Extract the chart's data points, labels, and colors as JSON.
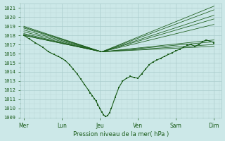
{
  "xlabel": "Pression niveau de la mer( hPa )",
  "ylim": [
    1009,
    1021.5
  ],
  "yticks": [
    1009,
    1010,
    1011,
    1012,
    1013,
    1014,
    1015,
    1016,
    1017,
    1018,
    1019,
    1020,
    1021
  ],
  "xtick_labels": [
    "Mer",
    "Lun",
    "Jeu",
    "Ven",
    "Sam",
    "Dim"
  ],
  "xtick_positions": [
    0,
    1,
    2,
    3,
    4,
    5
  ],
  "bg_color": "#cce8e8",
  "grid_major_color": "#aacccc",
  "grid_minor_color": "#bdd8d8",
  "line_color": "#1a5c1a",
  "line_width": 0.8,
  "font_color": "#1a5c1a",
  "conv_x": 2.05,
  "conv_y": 1016.2,
  "ensemble_starts": [
    1018.0,
    1018.0,
    1018.1,
    1018.2,
    1018.4,
    1018.6,
    1018.8,
    1018.9,
    1019.0
  ],
  "ensemble_ends": [
    1021.2,
    1020.8,
    1020.2,
    1019.8,
    1019.2,
    1017.5,
    1017.3,
    1017.0,
    1016.8
  ],
  "main_x": [
    0.0,
    0.15,
    0.3,
    0.5,
    0.65,
    0.8,
    0.9,
    1.0,
    1.1,
    1.2,
    1.3,
    1.4,
    1.5,
    1.6,
    1.7,
    1.75,
    1.8,
    1.85,
    1.9,
    1.95,
    2.0,
    2.05,
    2.1,
    2.15,
    2.2,
    2.25,
    2.3,
    2.4,
    2.5,
    2.6,
    2.7,
    2.8,
    2.9,
    3.0,
    3.1,
    3.2,
    3.3,
    3.4,
    3.5,
    3.6,
    3.7,
    3.8,
    3.9,
    4.0,
    4.1,
    4.2,
    4.3,
    4.4,
    4.5,
    4.6,
    4.7,
    4.8,
    5.0
  ],
  "main_y": [
    1018.0,
    1017.6,
    1017.2,
    1016.7,
    1016.2,
    1015.9,
    1015.7,
    1015.5,
    1015.2,
    1014.8,
    1014.3,
    1013.8,
    1013.2,
    1012.6,
    1012.0,
    1011.7,
    1011.4,
    1011.1,
    1010.8,
    1010.4,
    1010.0,
    1009.6,
    1009.3,
    1009.1,
    1009.2,
    1009.5,
    1010.0,
    1011.2,
    1012.3,
    1013.0,
    1013.3,
    1013.5,
    1013.4,
    1013.3,
    1013.8,
    1014.3,
    1014.8,
    1015.1,
    1015.3,
    1015.5,
    1015.7,
    1015.9,
    1016.1,
    1016.3,
    1016.5,
    1016.7,
    1016.9,
    1017.0,
    1016.8,
    1017.0,
    1017.3,
    1017.5,
    1017.2
  ]
}
